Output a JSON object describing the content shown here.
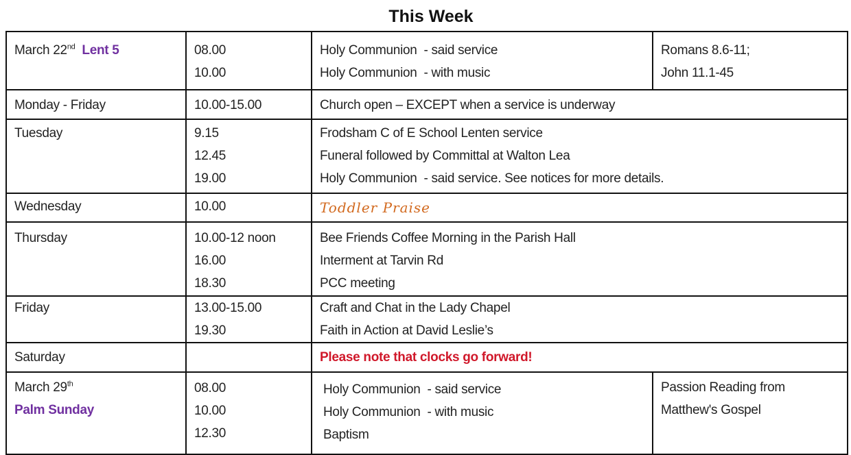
{
  "title": "This Week",
  "colors": {
    "accent_purple": "#7030a0",
    "alert_red": "#d0182a",
    "toddler_orange": "#d2691e"
  },
  "rows": [
    {
      "day": "March 22",
      "day_sup": "nd",
      "day_extra": "Lent 5",
      "times": [
        "08.00",
        "10.00"
      ],
      "events": [
        "Holy Communion  - said service",
        "Holy Communion  - with music"
      ],
      "readings": [
        "Romans 8.6-11;",
        "John 11.1-45"
      ]
    },
    {
      "day": "Monday - Friday",
      "times": [
        "10.00-15.00"
      ],
      "events": [
        "Church open – EXCEPT when a service is underway"
      ]
    },
    {
      "day": "Tuesday",
      "times": [
        "9.15",
        "12.45",
        "19.00"
      ],
      "events": [
        "Frodsham C of E School Lenten service",
        "Funeral followed by Committal at Walton Lea",
        "Holy Communion  - said service. See notices for more details."
      ]
    },
    {
      "day": "Wednesday",
      "times": [
        "10.00"
      ],
      "events": [
        "Toddler Praise"
      ]
    },
    {
      "day": "Thursday",
      "times": [
        "10.00-12 noon",
        "16.00",
        "18.30"
      ],
      "events": [
        "Bee Friends Coffee Morning in the Parish Hall",
        "Interment at Tarvin Rd",
        "PCC meeting"
      ]
    },
    {
      "day": "Friday",
      "times": [
        "13.00-15.00",
        "19.30"
      ],
      "events": [
        "Craft and Chat in the Lady Chapel",
        "Faith in Action at David Leslie’s"
      ]
    },
    {
      "day": "Saturday",
      "times": [],
      "events": [
        "Please note that clocks go forward!"
      ]
    },
    {
      "day": "March 29",
      "day_sup": "th",
      "day_extra": "Palm Sunday",
      "times": [
        "08.00",
        "10.00",
        "12.30"
      ],
      "events": [
        "Holy Communion  - said service",
        "Holy Communion  - with music",
        "Baptism"
      ],
      "readings": [
        "Passion Reading from",
        "Matthew's Gospel"
      ]
    }
  ]
}
